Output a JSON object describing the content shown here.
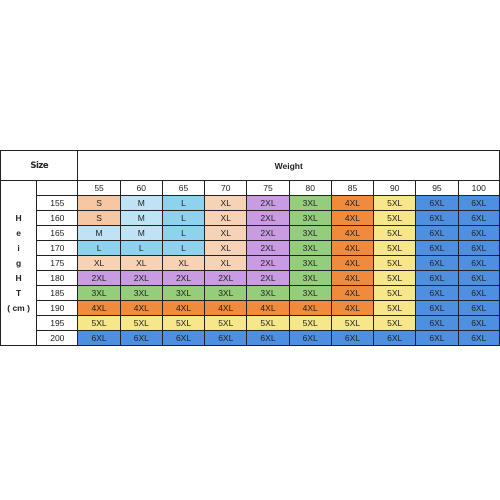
{
  "title": "Size",
  "weight_label": "Weight",
  "height_label_lines": [
    "H",
    "e",
    "i",
    "g",
    "H",
    "T",
    "( cm )"
  ],
  "weights": [
    "55",
    "60",
    "65",
    "70",
    "75",
    "80",
    "85",
    "90",
    "95",
    "100"
  ],
  "heights": [
    "155",
    "160",
    "165",
    "170",
    "175",
    "180",
    "185",
    "190",
    "195",
    "200"
  ],
  "rows": [
    [
      "S",
      "M",
      "L",
      "XL",
      "2XL",
      "3XL",
      "4XL",
      "5XL",
      "6XL",
      "6XL"
    ],
    [
      "S",
      "M",
      "L",
      "XL",
      "2XL",
      "3XL",
      "4XL",
      "5XL",
      "6XL",
      "6XL"
    ],
    [
      "M",
      "M",
      "L",
      "XL",
      "2XL",
      "3XL",
      "4XL",
      "5XL",
      "6XL",
      "6XL"
    ],
    [
      "L",
      "L",
      "L",
      "XL",
      "2XL",
      "3XL",
      "4XL",
      "5XL",
      "6XL",
      "6XL"
    ],
    [
      "XL",
      "XL",
      "XL",
      "XL",
      "2XL",
      "3XL",
      "4XL",
      "5XL",
      "6XL",
      "6XL"
    ],
    [
      "2XL",
      "2XL",
      "2XL",
      "2XL",
      "2XL",
      "3XL",
      "4XL",
      "5XL",
      "6XL",
      "6XL"
    ],
    [
      "3XL",
      "3XL",
      "3XL",
      "3XL",
      "3XL",
      "3XL",
      "4XL",
      "5XL",
      "6XL",
      "6XL"
    ],
    [
      "4XL",
      "4XL",
      "4XL",
      "4XL",
      "4XL",
      "4XL",
      "4XL",
      "5XL",
      "6XL",
      "6XL"
    ],
    [
      "5XL",
      "5XL",
      "5XL",
      "5XL",
      "5XL",
      "5XL",
      "5XL",
      "5XL",
      "6XL",
      "6XL"
    ],
    [
      "6XL",
      "6XL",
      "6XL",
      "6XL",
      "6XL",
      "6XL",
      "6XL",
      "6XL",
      "6XL",
      "6XL"
    ]
  ],
  "size_colors": {
    "S": "#f7c6a3",
    "M": "#bfe3f4",
    "L": "#8fd2ee",
    "XL": "#f7d3b5",
    "2XL": "#c99be3",
    "3XL": "#94cd7c",
    "4XL": "#f08a3c",
    "5XL": "#f8e68a",
    "6XL": "#4f8fe0"
  }
}
